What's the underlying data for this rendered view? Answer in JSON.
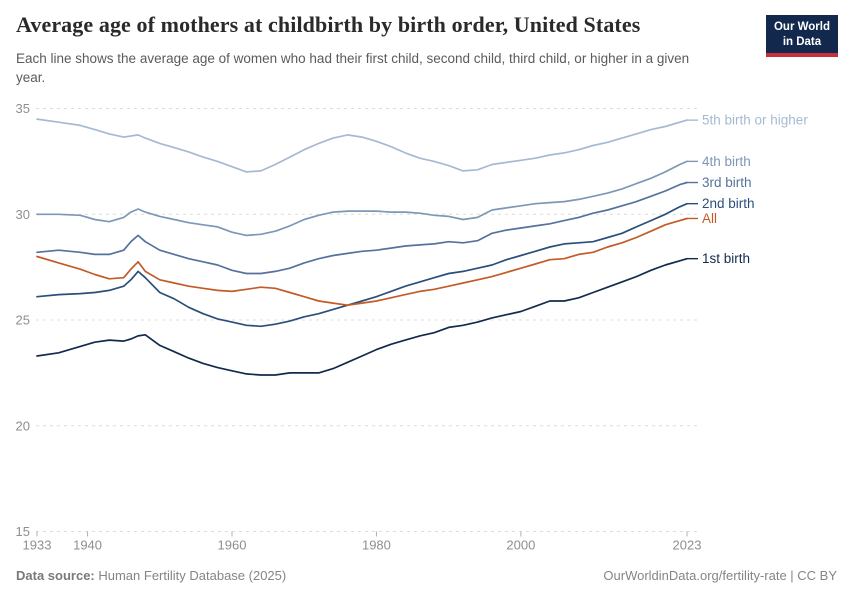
{
  "header": {
    "title": "Average age of mothers at childbirth by birth order, United States",
    "subtitle": "Each line shows the average age of women who had their first child, second child, third child, or higher in a given year.",
    "logo": {
      "line1": "Our World",
      "line2": "in Data",
      "bg_color": "#12294d",
      "accent_color": "#c8303c"
    }
  },
  "footer": {
    "source_label": "Data source:",
    "source_value": " Human Fertility Database (2025)",
    "attribution": "OurWorldinData.org/fertility-rate | CC BY"
  },
  "chart_data": {
    "type": "line",
    "title": "Average age of mothers at childbirth by birth order, United States",
    "xlabel": "",
    "ylabel": "",
    "xlim": [
      1933,
      2023
    ],
    "ylim": [
      15,
      35.5
    ],
    "grid": "horizontal-dashed",
    "legend_position": "right-of-line-ends",
    "yticks": [
      15,
      20,
      25,
      30,
      35
    ],
    "xticks": [
      1933,
      1940,
      1960,
      1980,
      2000,
      2023
    ],
    "x": [
      1933,
      1936,
      1939,
      1941,
      1943,
      1945,
      1946,
      1947,
      1948,
      1950,
      1952,
      1954,
      1956,
      1958,
      1960,
      1962,
      1964,
      1966,
      1968,
      1970,
      1972,
      1974,
      1976,
      1978,
      1980,
      1982,
      1984,
      1986,
      1988,
      1990,
      1992,
      1994,
      1996,
      1998,
      2000,
      2002,
      2004,
      2006,
      2008,
      2010,
      2012,
      2014,
      2016,
      2018,
      2020,
      2022,
      2023
    ],
    "series": [
      {
        "name": "5th birth or higher",
        "color": "#a5bad2",
        "values": [
          34.5,
          34.35,
          34.2,
          34.0,
          33.8,
          33.65,
          33.7,
          33.75,
          33.6,
          33.35,
          33.15,
          32.95,
          32.7,
          32.5,
          32.25,
          32.0,
          32.05,
          32.35,
          32.7,
          33.05,
          33.35,
          33.6,
          33.75,
          33.65,
          33.45,
          33.2,
          32.9,
          32.65,
          32.5,
          32.3,
          32.05,
          32.1,
          32.35,
          32.45,
          32.55,
          32.65,
          32.8,
          32.9,
          33.05,
          33.25,
          33.4,
          33.6,
          33.8,
          34.0,
          34.15,
          34.35,
          34.45
        ]
      },
      {
        "name": "4th birth",
        "color": "#7e97b6",
        "values": [
          30.0,
          30.0,
          29.95,
          29.75,
          29.65,
          29.85,
          30.1,
          30.25,
          30.1,
          29.9,
          29.75,
          29.6,
          29.5,
          29.4,
          29.15,
          29.0,
          29.05,
          29.2,
          29.45,
          29.75,
          29.95,
          30.1,
          30.15,
          30.15,
          30.15,
          30.1,
          30.1,
          30.05,
          29.95,
          29.9,
          29.75,
          29.85,
          30.2,
          30.3,
          30.4,
          30.5,
          30.55,
          30.6,
          30.7,
          30.85,
          31.0,
          31.2,
          31.45,
          31.7,
          32.0,
          32.35,
          32.5
        ]
      },
      {
        "name": "3rd birth",
        "color": "#54729d",
        "values": [
          28.2,
          28.3,
          28.2,
          28.1,
          28.1,
          28.3,
          28.7,
          29.0,
          28.7,
          28.3,
          28.1,
          27.9,
          27.75,
          27.6,
          27.35,
          27.2,
          27.2,
          27.3,
          27.45,
          27.7,
          27.9,
          28.05,
          28.15,
          28.25,
          28.3,
          28.4,
          28.5,
          28.55,
          28.6,
          28.7,
          28.65,
          28.75,
          29.1,
          29.25,
          29.35,
          29.45,
          29.55,
          29.7,
          29.85,
          30.05,
          30.2,
          30.4,
          30.6,
          30.85,
          31.1,
          31.4,
          31.5
        ]
      },
      {
        "name": "2nd birth",
        "color": "#2a4f7c",
        "values": [
          26.1,
          26.2,
          26.25,
          26.3,
          26.4,
          26.6,
          26.9,
          27.3,
          27.0,
          26.3,
          26.0,
          25.6,
          25.3,
          25.05,
          24.9,
          24.75,
          24.7,
          24.8,
          24.95,
          25.15,
          25.3,
          25.5,
          25.7,
          25.9,
          26.1,
          26.35,
          26.6,
          26.8,
          27.0,
          27.2,
          27.3,
          27.45,
          27.6,
          27.85,
          28.05,
          28.25,
          28.45,
          28.6,
          28.65,
          28.7,
          28.9,
          29.1,
          29.4,
          29.7,
          30.0,
          30.35,
          30.5
        ]
      },
      {
        "name": "All",
        "color": "#c35b28",
        "values": [
          28.0,
          27.7,
          27.4,
          27.15,
          26.95,
          27.0,
          27.4,
          27.75,
          27.3,
          26.9,
          26.75,
          26.6,
          26.5,
          26.4,
          26.35,
          26.45,
          26.55,
          26.5,
          26.3,
          26.1,
          25.9,
          25.8,
          25.7,
          25.8,
          25.9,
          26.05,
          26.2,
          26.35,
          26.45,
          26.6,
          26.75,
          26.9,
          27.05,
          27.25,
          27.45,
          27.65,
          27.85,
          27.9,
          28.1,
          28.2,
          28.45,
          28.65,
          28.9,
          29.2,
          29.5,
          29.7,
          29.8
        ]
      },
      {
        "name": "1st birth",
        "color": "#132a4d",
        "values": [
          23.3,
          23.45,
          23.75,
          23.95,
          24.05,
          24.0,
          24.1,
          24.25,
          24.3,
          23.8,
          23.5,
          23.2,
          22.95,
          22.75,
          22.6,
          22.45,
          22.4,
          22.4,
          22.5,
          22.5,
          22.5,
          22.7,
          23.0,
          23.3,
          23.6,
          23.85,
          24.05,
          24.25,
          24.4,
          24.65,
          24.75,
          24.9,
          25.1,
          25.25,
          25.4,
          25.65,
          25.9,
          25.9,
          26.05,
          26.3,
          26.55,
          26.8,
          27.05,
          27.35,
          27.6,
          27.8,
          27.9
        ]
      }
    ],
    "axis_colors": {
      "tick_label": "#8f8f8f",
      "gridline": "#dcdcdc",
      "tick_mark": "#b0b0b0"
    }
  }
}
